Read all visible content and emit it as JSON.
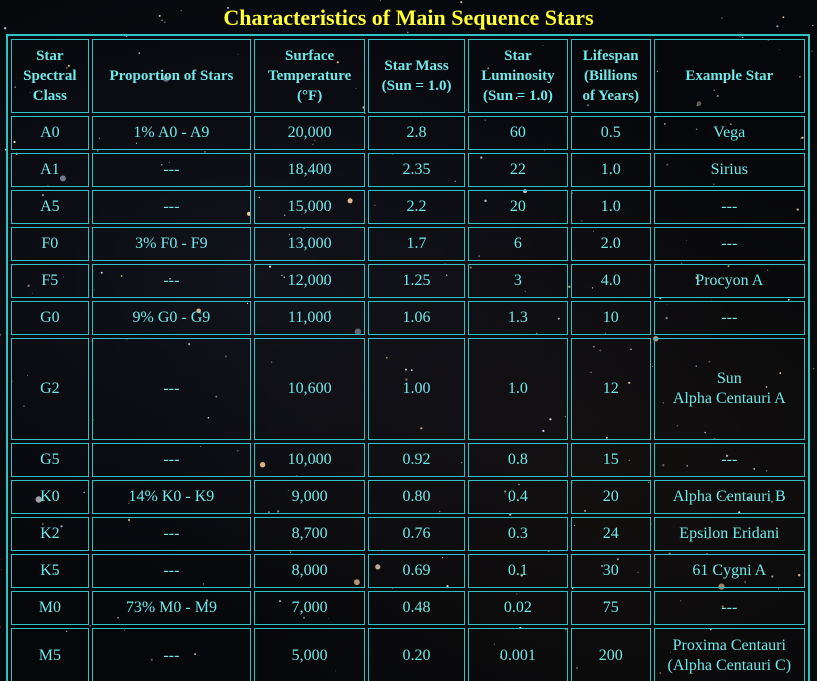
{
  "title": "Characteristics of Main Sequence Stars",
  "colors": {
    "title": "#ffff33",
    "text": "#70e8e8",
    "border": "#2fc2c2",
    "background": "#05070a"
  },
  "headers": [
    "Star\nSpectral\nClass",
    "Proportion of Stars",
    "Surface\nTemperature\n(°F)",
    "Star Mass\n(Sun = 1.0)",
    "Star\nLuminosity\n(Sun = 1.0)",
    "Lifespan\n(Billions\nof Years)",
    "Example Star"
  ],
  "rows": [
    {
      "cls": "A0",
      "prop": "1%  A0 - A9",
      "temp": "20,000",
      "mass": "2.8",
      "lum": "60",
      "life": "0.5",
      "example": "Vega"
    },
    {
      "cls": "A1",
      "prop": "---",
      "temp": "18,400",
      "mass": "2.35",
      "lum": "22",
      "life": "1.0",
      "example": "Sirius"
    },
    {
      "cls": "A5",
      "prop": "---",
      "temp": "15,000",
      "mass": "2.2",
      "lum": "20",
      "life": "1.0",
      "example": "---"
    },
    {
      "cls": "F0",
      "prop": "3%  F0 - F9",
      "temp": "13,000",
      "mass": "1.7",
      "lum": "6",
      "life": "2.0",
      "example": "---"
    },
    {
      "cls": "F5",
      "prop": "---",
      "temp": "12,000",
      "mass": "1.25",
      "lum": "3",
      "life": "4.0",
      "example": "Procyon A"
    },
    {
      "cls": "G0",
      "prop": "9%  G0 - G9",
      "temp": "11,000",
      "mass": "1.06",
      "lum": "1.3",
      "life": "10",
      "example": "---"
    },
    {
      "cls": "G2",
      "prop": "---",
      "temp": "10,600",
      "mass": "1.00",
      "lum": "1.0",
      "life": "12",
      "example": "Sun\nAlpha Centauri A"
    },
    {
      "cls": "G5",
      "prop": "---",
      "temp": "10,000",
      "mass": "0.92",
      "lum": "0.8",
      "life": "15",
      "example": "---"
    },
    {
      "cls": "K0",
      "prop": "14%  K0 - K9",
      "temp": "9,000",
      "mass": "0.80",
      "lum": "0.4",
      "life": "20",
      "example": "Alpha Centauri B"
    },
    {
      "cls": "K2",
      "prop": "---",
      "temp": "8,700",
      "mass": "0.76",
      "lum": "0.3",
      "life": "24",
      "example": "Epsilon Eridani"
    },
    {
      "cls": "K5",
      "prop": "---",
      "temp": "8,000",
      "mass": "0.69",
      "lum": "0.1",
      "life": "30",
      "example": "61 Cygni A"
    },
    {
      "cls": "M0",
      "prop": "73%  M0 - M9",
      "temp": "7,000",
      "mass": "0.48",
      "lum": "0.02",
      "life": "75",
      "example": "---"
    },
    {
      "cls": "M5",
      "prop": "---",
      "temp": "5,000",
      "mass": "0.20",
      "lum": "0.001",
      "life": "200",
      "example": "Proxima Centauri\n(Alpha Centauri C)"
    }
  ]
}
